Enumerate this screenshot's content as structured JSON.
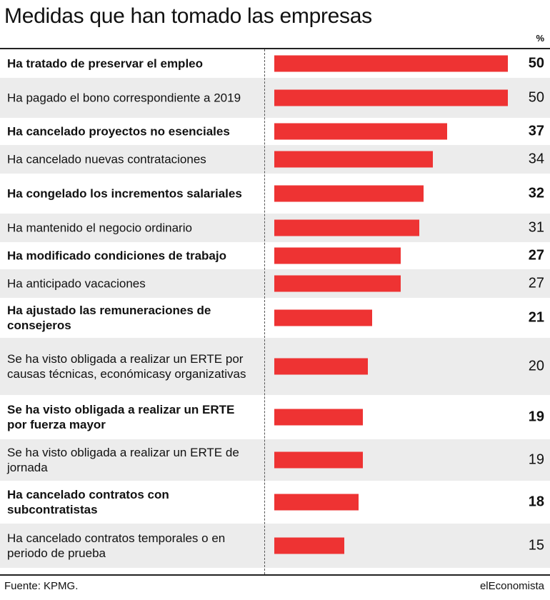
{
  "title": "Medidas que han tomado las empresas",
  "unit_label": "%",
  "source": "Fuente: KPMG.",
  "brand": "elEconomista",
  "colors": {
    "bar": "#ee3333",
    "shade": "#ececec",
    "text": "#111111"
  },
  "chart_data": {
    "type": "bar",
    "orientation": "horizontal",
    "xlim": [
      0,
      50
    ],
    "categories": [
      "Ha tratado de preservar el empleo",
      "Ha pagado el bono correspondiente a 2019",
      "Ha cancelado proyectos no esenciales",
      "Ha cancelado nuevas contrataciones",
      "Ha congelado los incrementos salariales",
      "Ha mantenido el negocio ordinario",
      "Ha modificado condiciones de trabajo",
      "Ha anticipado vacaciones",
      "Ha ajustado las remuneraciones de consejeros",
      "Se ha visto obligada a realizar un ERTE por causas técnicas, económicasy organizativas",
      "Se ha visto obligada a realizar un ERTE por fuerza mayor",
      "Se ha visto obligada a realizar un ERTE de jornada",
      "Ha cancelado contratos con subcontratistas",
      "Ha cancelado contratos temporales o en periodo de prueba"
    ],
    "values": [
      50,
      50,
      37,
      34,
      32,
      31,
      27,
      27,
      21,
      20,
      19,
      19,
      18,
      15
    ]
  }
}
